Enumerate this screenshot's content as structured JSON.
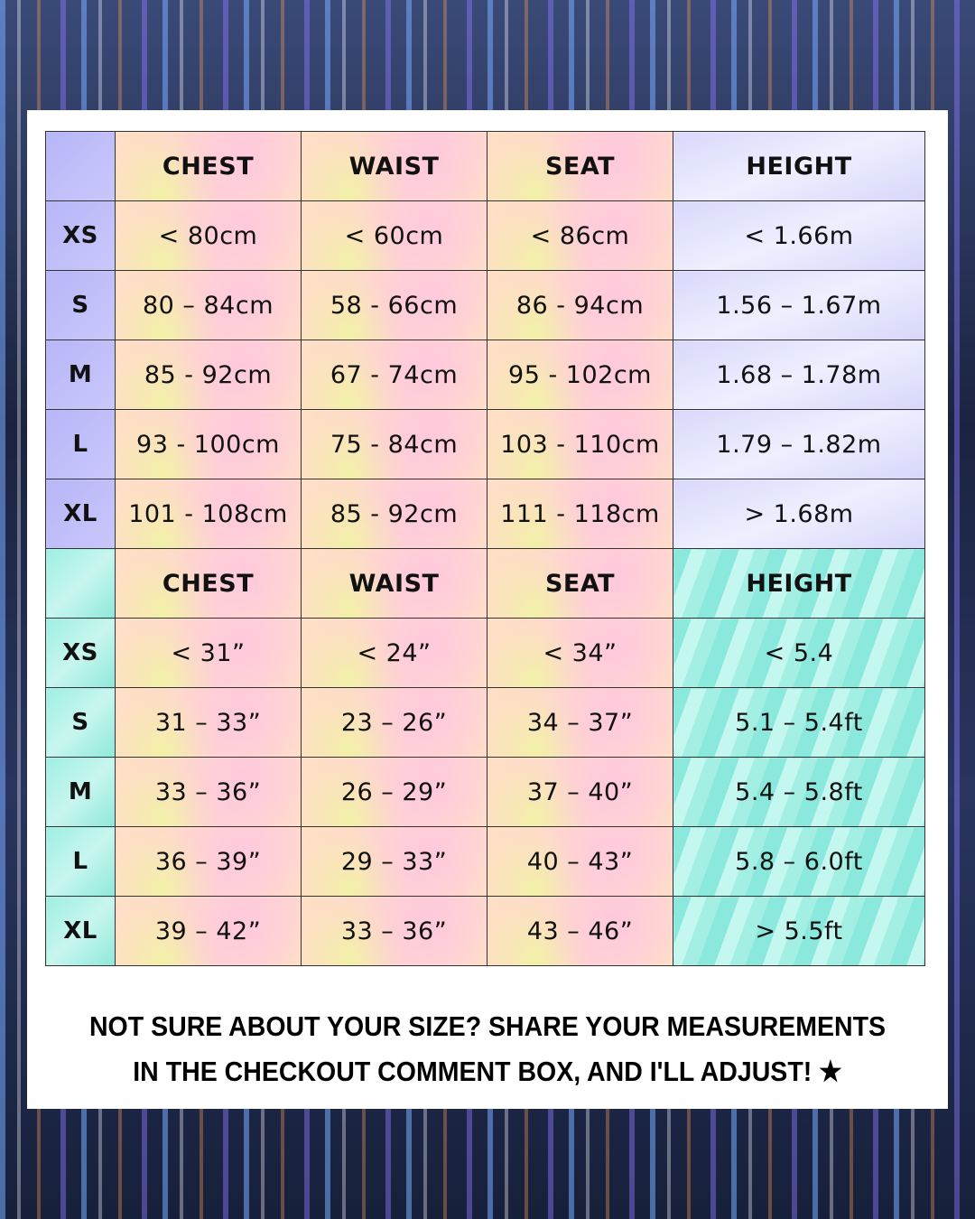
{
  "metric": {
    "headers": [
      "",
      "CHEST",
      "WAIST",
      "SEAT",
      "HEIGHT"
    ],
    "rows": [
      [
        "XS",
        "< 80cm",
        "< 60cm",
        "< 86cm",
        "< 1.66m"
      ],
      [
        "S",
        "80 – 84cm",
        "58 - 66cm",
        "86 - 94cm",
        "1.56 – 1.67m"
      ],
      [
        "M",
        "85 - 92cm",
        "67 - 74cm",
        "95 - 102cm",
        "1.68 – 1.78m"
      ],
      [
        "L",
        "93 - 100cm",
        "75 - 84cm",
        "103 - 110cm",
        "1.79 – 1.82m"
      ],
      [
        "XL",
        "101 - 108cm",
        "85 - 92cm",
        "111 - 118cm",
        "> 1.68m"
      ]
    ]
  },
  "imperial": {
    "headers": [
      "",
      "CHEST",
      "WAIST",
      "SEAT",
      "HEIGHT"
    ],
    "rows": [
      [
        "XS",
        "< 31”",
        "< 24”",
        "< 34”",
        "< 5.4"
      ],
      [
        "S",
        "31 – 33”",
        "23 – 26”",
        "34 – 37”",
        "5.1 – 5.4ft"
      ],
      [
        "M",
        "33 – 36”",
        "26 – 29”",
        "37 – 40”",
        "5.4 – 5.8ft"
      ],
      [
        "L",
        "36 – 39”",
        "29 – 33”",
        "40 – 43”",
        "5.8 – 6.0ft"
      ],
      [
        "XL",
        "39 – 42”",
        "33 – 36”",
        "43 – 46”",
        "> 5.5ft"
      ]
    ]
  },
  "note": {
    "line1": "NOT SURE ABOUT YOUR SIZE? SHARE YOUR MEASUREMENTS",
    "line2": "IN THE CHECKOUT COMMENT BOX, AND I'LL ADJUST! ★"
  }
}
